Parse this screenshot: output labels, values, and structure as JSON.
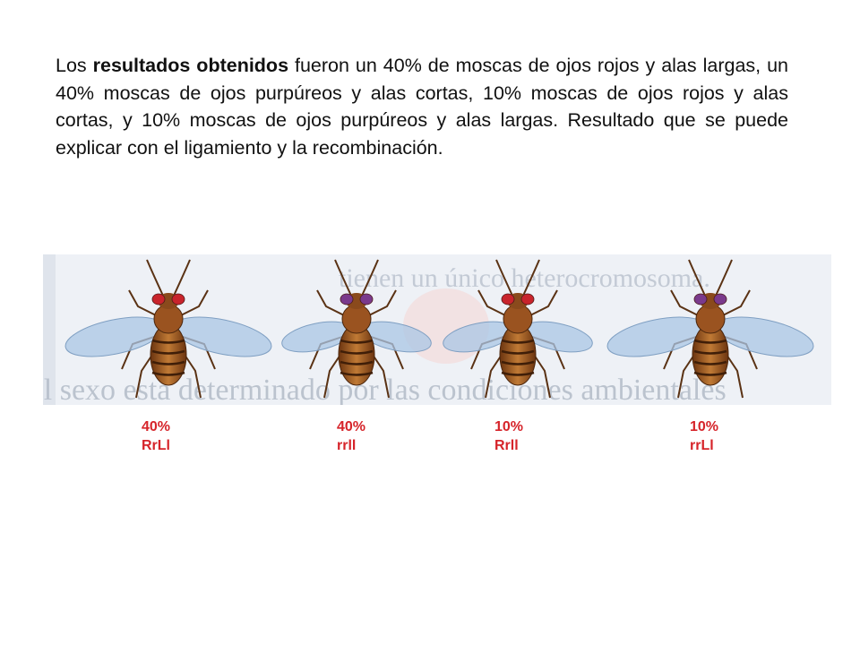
{
  "paragraph": {
    "before": "Los ",
    "bold": "resultados obtenidos",
    "after": " fueron un 40% de moscas de ojos rojos y alas largas, un 40% moscas de ojos purpúreos y alas cortas, 10% moscas de ojos rojos y alas cortas, y 10% moscas de ojos purpúreos y alas largas. Resultado que se puede explicar con el ligamiento y la recombinación."
  },
  "background_text": {
    "line1": "tienen un único heterocromosoma.",
    "line2": "El sexo está determinado por las condiciones ambientales"
  },
  "flies": [
    {
      "percent": "40%",
      "genotype": "RrLl",
      "eye_color": "#c8242c",
      "wings": "long"
    },
    {
      "percent": "40%",
      "genotype": "rrll",
      "eye_color": "#7a3a8c",
      "wings": "short"
    },
    {
      "percent": "10%",
      "genotype": "Rrll",
      "eye_color": "#c8242c",
      "wings": "short"
    },
    {
      "percent": "10%",
      "genotype": "rrLl",
      "eye_color": "#7a3a8c",
      "wings": "long"
    }
  ],
  "colors": {
    "label": "#d6242a",
    "body": "#9a5320",
    "wing": "#a9c6e4"
  }
}
